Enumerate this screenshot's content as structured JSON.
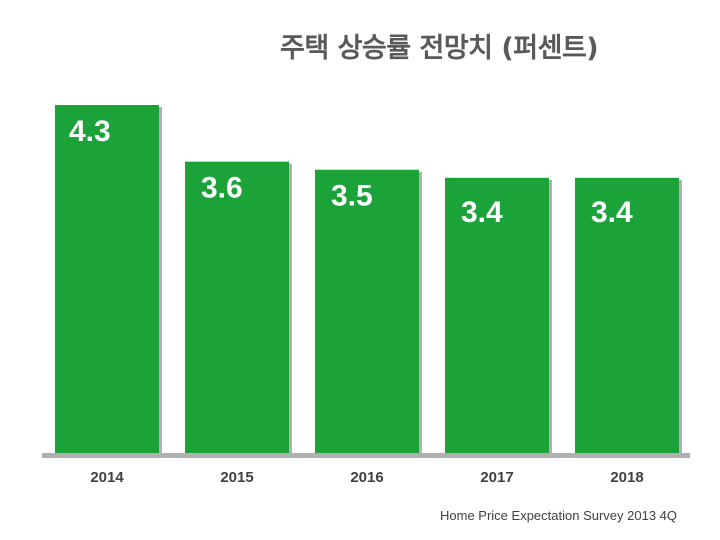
{
  "chart_data": {
    "type": "bar",
    "title": "주택 상승률 전망치 (퍼센트)",
    "categories": [
      "2014",
      "2015",
      "2016",
      "2017",
      "2018"
    ],
    "values": [
      4.3,
      3.6,
      3.5,
      3.4,
      3.4
    ],
    "value_labels": [
      "4.3",
      "3.6",
      "3.5",
      "3.4",
      "3.4"
    ],
    "xlabel": "",
    "ylabel": "",
    "ylim": [
      0,
      4.3
    ],
    "grid": false,
    "colors": {
      "bar": "#1ba33a",
      "axis": "#b0b0b0",
      "label": "#ffffff"
    }
  },
  "source_note": "Home Price Expectation Survey 2013 4Q"
}
